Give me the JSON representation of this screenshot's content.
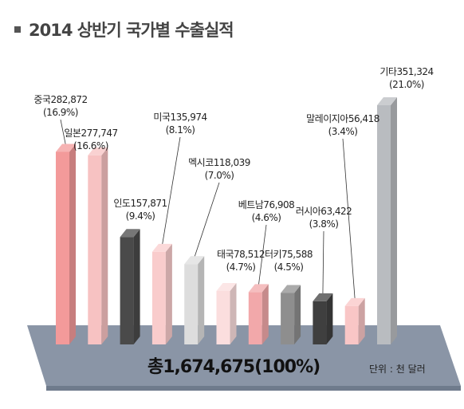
{
  "title": "2014 상반기 국가별 수출실적",
  "total_label": "총1,674,675(100%)",
  "unit_label": "단위 : 천 달러",
  "chart_data": {
    "type": "bar",
    "title": "2014 상반기 국가별 수출실적",
    "unit": "천 달러",
    "categories": [
      "중국",
      "일본",
      "인도",
      "미국",
      "멕시코",
      "태국",
      "베트남",
      "터키",
      "러시아",
      "말레이지아",
      "기타"
    ],
    "values": [
      282872,
      277747,
      157871,
      135974,
      118039,
      78512,
      76908,
      75588,
      63422,
      56418,
      351324
    ],
    "value_labels": [
      "282,872",
      "277,747",
      "157,871",
      "135,974",
      "118,039",
      "78,512",
      "76,908",
      "75,588",
      "63,422",
      "56,418",
      "351,324"
    ],
    "percents": [
      "(16.9%)",
      "(16.6%)",
      "(9.4%)",
      "(8.1%)",
      "(7.0%)",
      "(4.7%)",
      "(4.6%)",
      "(4.5%)",
      "(3.8%)",
      "(3.4%)",
      "(21.0%)"
    ],
    "colors": [
      "#f39a9a",
      "#f7c2c2",
      "#4a4a4a",
      "#f9cccc",
      "#dddddd",
      "#fbdede",
      "#f2a8aa",
      "#8e8e8e",
      "#3f3f3f",
      "#f9c6c6",
      "#b9bcc0"
    ],
    "total": 1674675,
    "total_percent": "100%",
    "grid": false,
    "legend": "none"
  }
}
